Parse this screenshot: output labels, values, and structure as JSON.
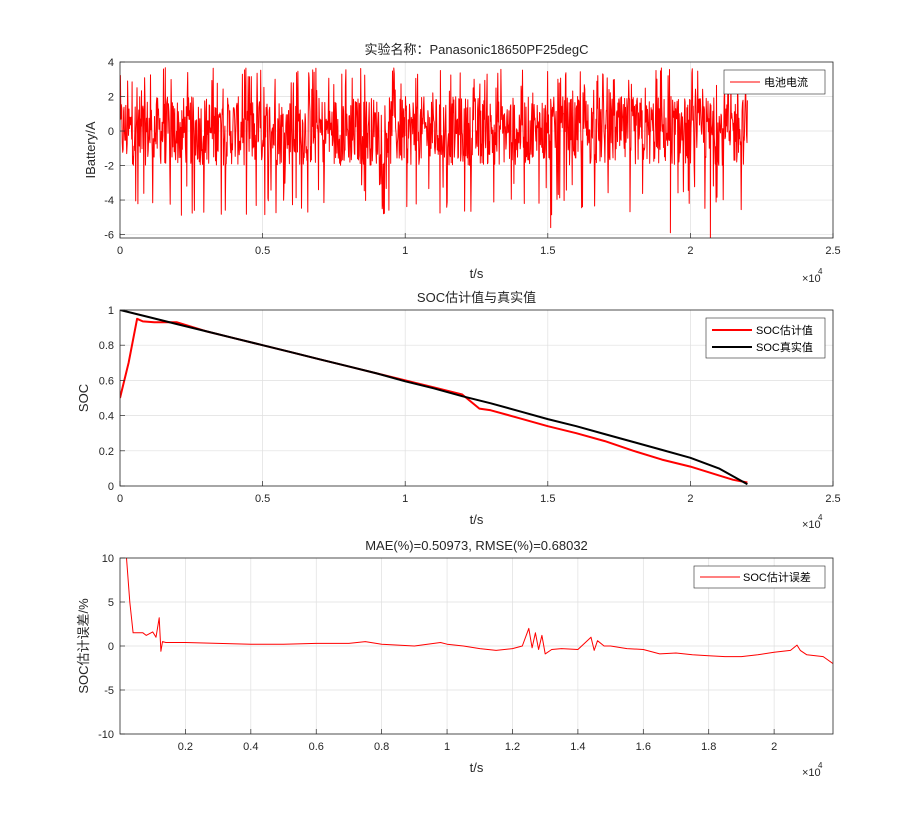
{
  "colors": {
    "current": "#ff0000",
    "estimate": "#ff0000",
    "truth": "#000000",
    "error": "#ff0000",
    "grid": "#dfdfdf",
    "axis": "#262626"
  },
  "chart_data": [
    {
      "type": "line",
      "title": "实验名称：Panasonic18650PF25degC",
      "xlabel": "t/s",
      "ylabel": "IBattery/A",
      "xlim": [
        0,
        25000
      ],
      "ylim": [
        -6.2,
        4
      ],
      "xticks": [
        0,
        5000,
        10000,
        15000,
        20000,
        25000
      ],
      "xticklabels": [
        "0",
        "0.5",
        "1",
        "1.5",
        "2",
        "2.5"
      ],
      "yticks": [
        -6,
        -4,
        -2,
        0,
        2,
        4
      ],
      "yticklabels": [
        "-6",
        "-4",
        "-2",
        "0",
        "2",
        "4"
      ],
      "exponent_base": "×10",
      "exponent_power": "4",
      "grid": true,
      "legend": "top-right",
      "series": [
        {
          "name": "电池电流",
          "color": "#ff0000",
          "description": "dense drive-cycle current signal",
          "x_range": [
            0,
            22000
          ],
          "typical_range": [
            -2,
            2
          ],
          "peak_max": 3.8,
          "peak_min": -6.2
        }
      ]
    },
    {
      "type": "line",
      "title": "SOC估计值与真实值",
      "xlabel": "t/s",
      "ylabel": "SOC",
      "xlim": [
        0,
        25000
      ],
      "ylim": [
        0,
        1
      ],
      "xticks": [
        0,
        5000,
        10000,
        15000,
        20000,
        25000
      ],
      "xticklabels": [
        "0",
        "0.5",
        "1",
        "1.5",
        "2",
        "2.5"
      ],
      "yticks": [
        0,
        0.2,
        0.4,
        0.6,
        0.8,
        1
      ],
      "yticklabels": [
        "0",
        "0.2",
        "0.4",
        "0.6",
        "0.8",
        "1"
      ],
      "exponent_base": "×10",
      "exponent_power": "4",
      "grid": true,
      "legend": "top-right",
      "series": [
        {
          "name": "SOC估计值",
          "color": "#ff0000",
          "x": [
            0,
            300,
            600,
            800,
            1200,
            2000,
            3000,
            4000,
            5000,
            6000,
            7000,
            8000,
            9000,
            10000,
            11000,
            12000,
            12600,
            13000,
            14000,
            15000,
            16000,
            17000,
            18000,
            19000,
            20000,
            21000,
            21500,
            22000
          ],
          "y": [
            0.5,
            0.7,
            0.95,
            0.935,
            0.93,
            0.93,
            0.88,
            0.84,
            0.8,
            0.76,
            0.72,
            0.68,
            0.64,
            0.6,
            0.56,
            0.52,
            0.44,
            0.43,
            0.385,
            0.34,
            0.3,
            0.255,
            0.2,
            0.15,
            0.11,
            0.06,
            0.035,
            0.02
          ]
        },
        {
          "name": "SOC真实值",
          "color": "#000000",
          "x": [
            0,
            500,
            1000,
            2000,
            3000,
            4000,
            5000,
            6000,
            7000,
            8000,
            9000,
            10000,
            11000,
            12000,
            13000,
            14000,
            15000,
            16000,
            17000,
            18000,
            19000,
            20000,
            21000,
            22000
          ],
          "y": [
            1.0,
            0.98,
            0.96,
            0.92,
            0.88,
            0.84,
            0.8,
            0.76,
            0.72,
            0.68,
            0.64,
            0.595,
            0.555,
            0.51,
            0.47,
            0.425,
            0.38,
            0.34,
            0.295,
            0.25,
            0.205,
            0.16,
            0.1,
            0.01
          ]
        }
      ]
    },
    {
      "type": "line",
      "title": "MAE(%)=0.50973, RMSE(%)=0.68032",
      "xlabel": "t/s",
      "ylabel": "SOC估计误差/%",
      "xlim": [
        0,
        21800
      ],
      "ylim": [
        -10,
        10
      ],
      "xticks": [
        2000,
        4000,
        6000,
        8000,
        10000,
        12000,
        14000,
        16000,
        18000,
        20000
      ],
      "xticklabels": [
        "0.2",
        "0.4",
        "0.6",
        "0.8",
        "1",
        "1.2",
        "1.4",
        "1.6",
        "1.8",
        "2"
      ],
      "yticks": [
        -10,
        -5,
        0,
        5,
        10
      ],
      "yticklabels": [
        "-10",
        "-5",
        "0",
        "5",
        "10"
      ],
      "exponent_base": "×10",
      "exponent_power": "4",
      "grid": true,
      "legend": "top-right",
      "series": [
        {
          "name": "SOC估计误差",
          "color": "#ff0000",
          "x": [
            0,
            200,
            300,
            400,
            500,
            700,
            800,
            1000,
            1100,
            1200,
            1250,
            1300,
            1400,
            2000,
            3000,
            4000,
            5000,
            6000,
            7000,
            7500,
            8000,
            9000,
            9800,
            10000,
            10500,
            11000,
            11500,
            12000,
            12300,
            12500,
            12600,
            12700,
            12800,
            12900,
            13000,
            13200,
            13500,
            14000,
            14400,
            14500,
            14600,
            14800,
            15000,
            15500,
            16000,
            16500,
            17000,
            17500,
            18000,
            18500,
            19000,
            19500,
            20000,
            20500,
            20700,
            20800,
            21000,
            21500,
            21800
          ],
          "y": [
            12,
            10,
            5,
            1.5,
            1.5,
            1.5,
            1.2,
            1.6,
            1.0,
            3.2,
            -0.6,
            0.5,
            0.4,
            0.4,
            0.3,
            0.2,
            0.2,
            0.3,
            0.3,
            0.5,
            0.2,
            0.0,
            0.4,
            0.2,
            0.0,
            -0.3,
            -0.5,
            -0.3,
            0.0,
            2.0,
            -0.2,
            1.5,
            -0.4,
            1.2,
            -0.9,
            -0.4,
            -0.3,
            -0.4,
            1.0,
            -0.5,
            0.6,
            0.0,
            0.0,
            -0.3,
            -0.4,
            -0.9,
            -0.8,
            -1.0,
            -1.1,
            -1.2,
            -1.2,
            -1.0,
            -0.7,
            -0.5,
            0.1,
            -0.5,
            -1.0,
            -1.2,
            -2.0
          ]
        }
      ]
    }
  ]
}
